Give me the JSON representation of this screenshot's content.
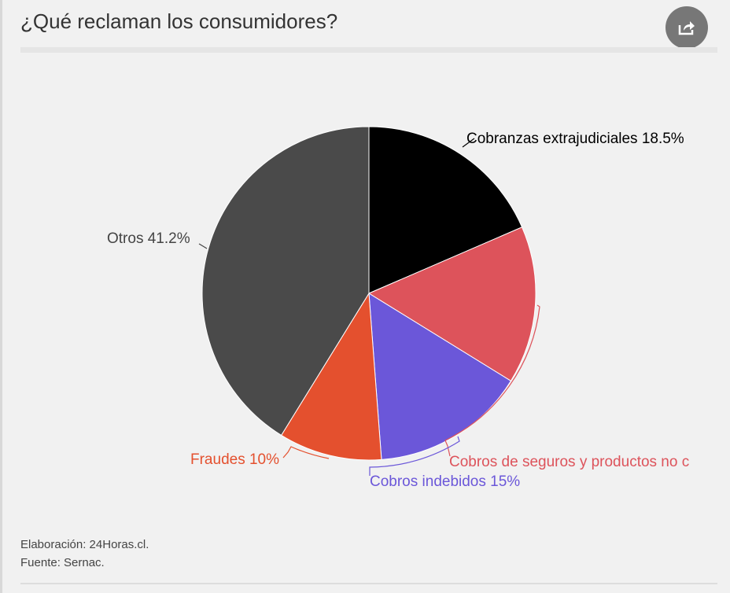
{
  "header": {
    "title": "¿Qué reclaman los consumidores?",
    "share_icon": "share-icon"
  },
  "chart_data": {
    "type": "pie",
    "title": "¿Qué reclaman los consumidores?",
    "slices": [
      {
        "label": "Cobranzas extrajudiciales 18.5%",
        "name": "Cobranzas extrajudiciales",
        "value": 18.5,
        "color": "#000000",
        "label_color": "#000000"
      },
      {
        "label": "Cobros de seguros y productos no c",
        "name": "Cobros de seguros y productos no c",
        "value": 15.3,
        "color": "#dd535b",
        "label_color": "#dd535b"
      },
      {
        "label": "Cobros indebidos 15%",
        "name": "Cobros indebidos",
        "value": 15,
        "color": "#6b57d9",
        "label_color": "#6b57d9"
      },
      {
        "label": "Fraudes 10%",
        "name": "Fraudes",
        "value": 10,
        "color": "#e4502e",
        "label_color": "#e4502e"
      },
      {
        "label": "Otros 41.2%",
        "name": "Otros",
        "value": 41.2,
        "color": "#4a4a4a",
        "label_color": "#444444"
      }
    ]
  },
  "footer": {
    "credit": "Elaboración: 24Horas.cl.",
    "source": "Fuente: Sernac."
  }
}
